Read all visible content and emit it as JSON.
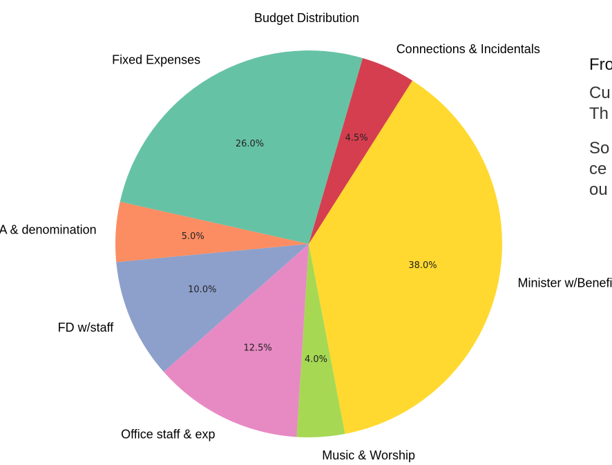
{
  "chart_data": {
    "type": "pie",
    "title": "Budget Distribution",
    "slices": [
      {
        "label": "Minister w/Benefits",
        "value": 38.0,
        "pct_text": "38.0%",
        "color": "#ffd92f"
      },
      {
        "label": "Music & Worship",
        "value": 4.0,
        "pct_text": "4.0%",
        "color": "#a6d854"
      },
      {
        "label": "Office staff & exp",
        "value": 12.5,
        "pct_text": "12.5%",
        "color": "#e78ac3"
      },
      {
        "label": "FD w/staff",
        "value": 10.0,
        "pct_text": "10.0%",
        "color": "#8da0cb"
      },
      {
        "label": "UUA & denomination",
        "value": 5.0,
        "pct_text": "5.0%",
        "color": "#fc8d62"
      },
      {
        "label": "Fixed Expenses",
        "value": 26.0,
        "pct_text": "26.0%",
        "color": "#66c2a5"
      },
      {
        "label": "Connections & Incidentals",
        "value": 4.5,
        "pct_text": "4.5%",
        "color": "#d53e4f"
      }
    ],
    "start_angle_deg": 57.6,
    "direction": "clockwise"
  },
  "side_panel": {
    "heading": "Fro",
    "line1": "Cu",
    "line2": "Th",
    "line3": "So",
    "line4": "ce",
    "line5": "ou"
  }
}
